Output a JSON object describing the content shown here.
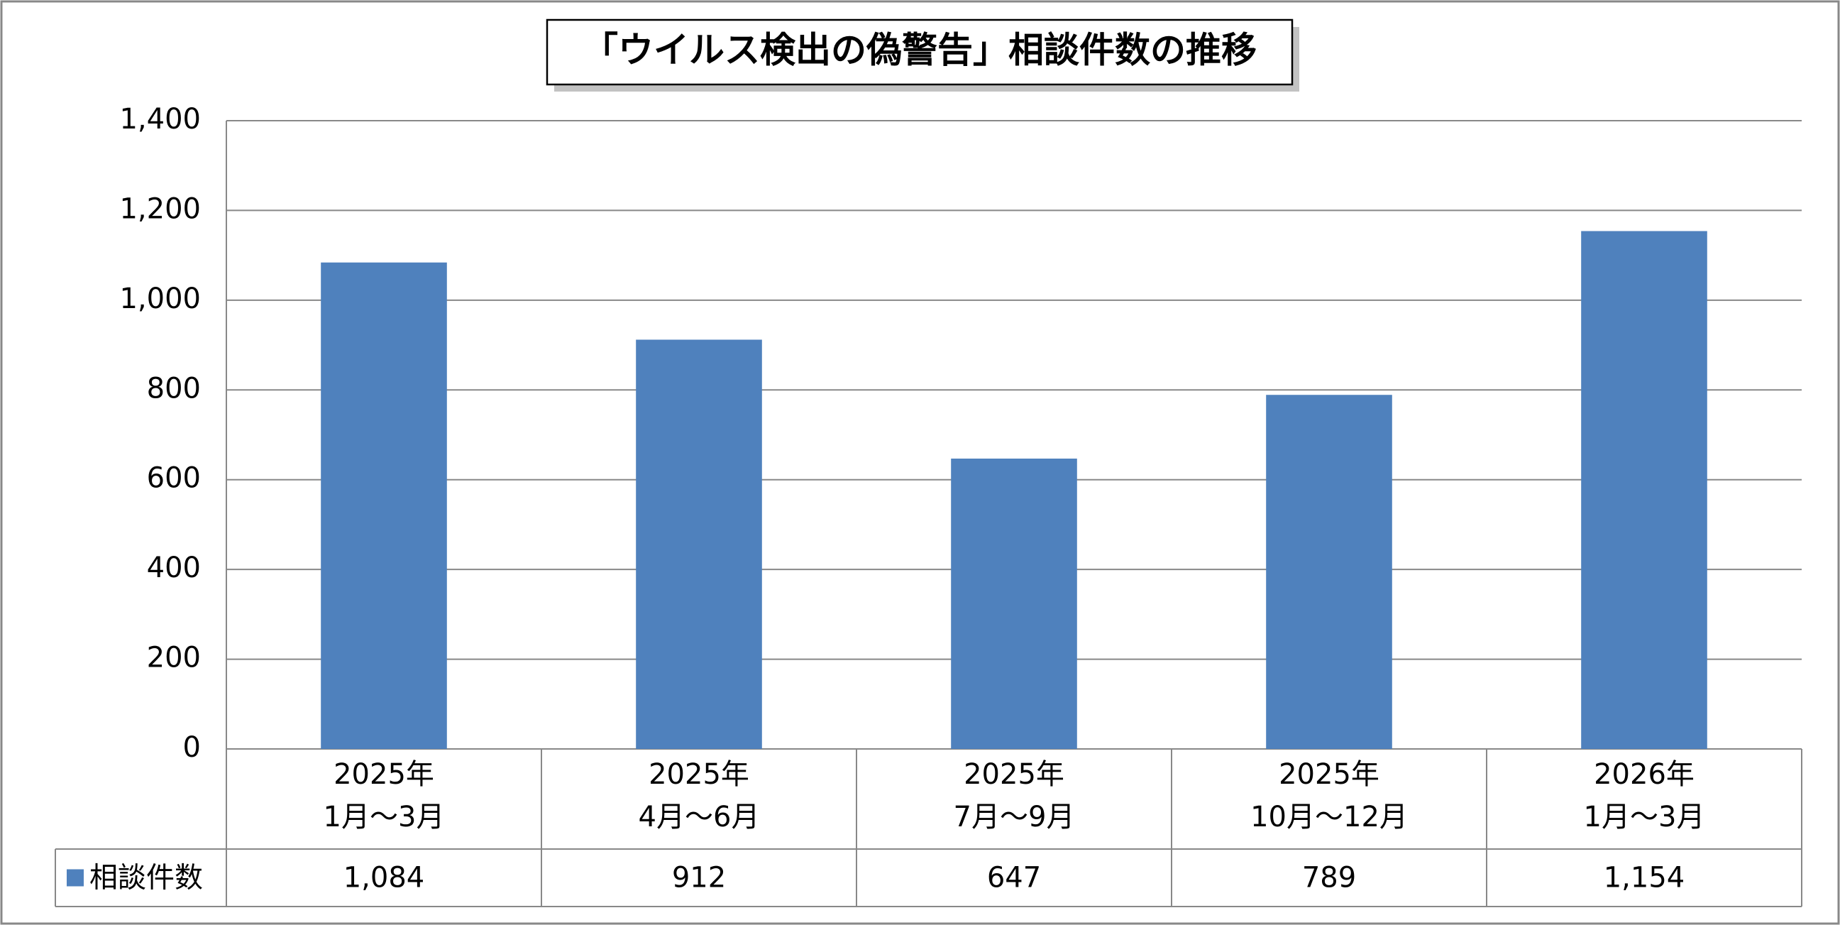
{
  "chart_data": {
    "type": "bar",
    "title": "「ウイルス検出の偽警告」相談件数の推移",
    "categories": [
      "2025年\n1月～3月",
      "2025年\n4月～6月",
      "2025年\n7月～9月",
      "2025年\n10月～12月",
      "2026年\n1月～3月"
    ],
    "series": [
      {
        "name": "相談件数",
        "color": "#4f81bd",
        "values": [
          1084,
          912,
          647,
          789,
          1154
        ],
        "value_labels": [
          "1,084",
          "912",
          "647",
          "789",
          "1,154"
        ]
      }
    ],
    "ylim": [
      0,
      1400
    ],
    "yticks": [
      0,
      200,
      400,
      600,
      800,
      {
        "value": 1000,
        "label": "1,000"
      },
      {
        "value": 1200,
        "label": "1,200"
      },
      {
        "value": 1400,
        "label": "1,400"
      }
    ],
    "grid": true
  }
}
